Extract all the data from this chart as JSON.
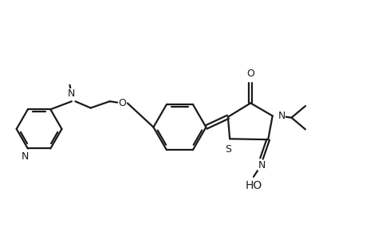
{
  "bg_color": "#ffffff",
  "line_color": "#1a1a1a",
  "line_width": 1.6,
  "fig_width": 4.6,
  "fig_height": 3.0,
  "dpi": 100,
  "xlim": [
    0,
    10
  ],
  "ylim": [
    0,
    6.52
  ]
}
